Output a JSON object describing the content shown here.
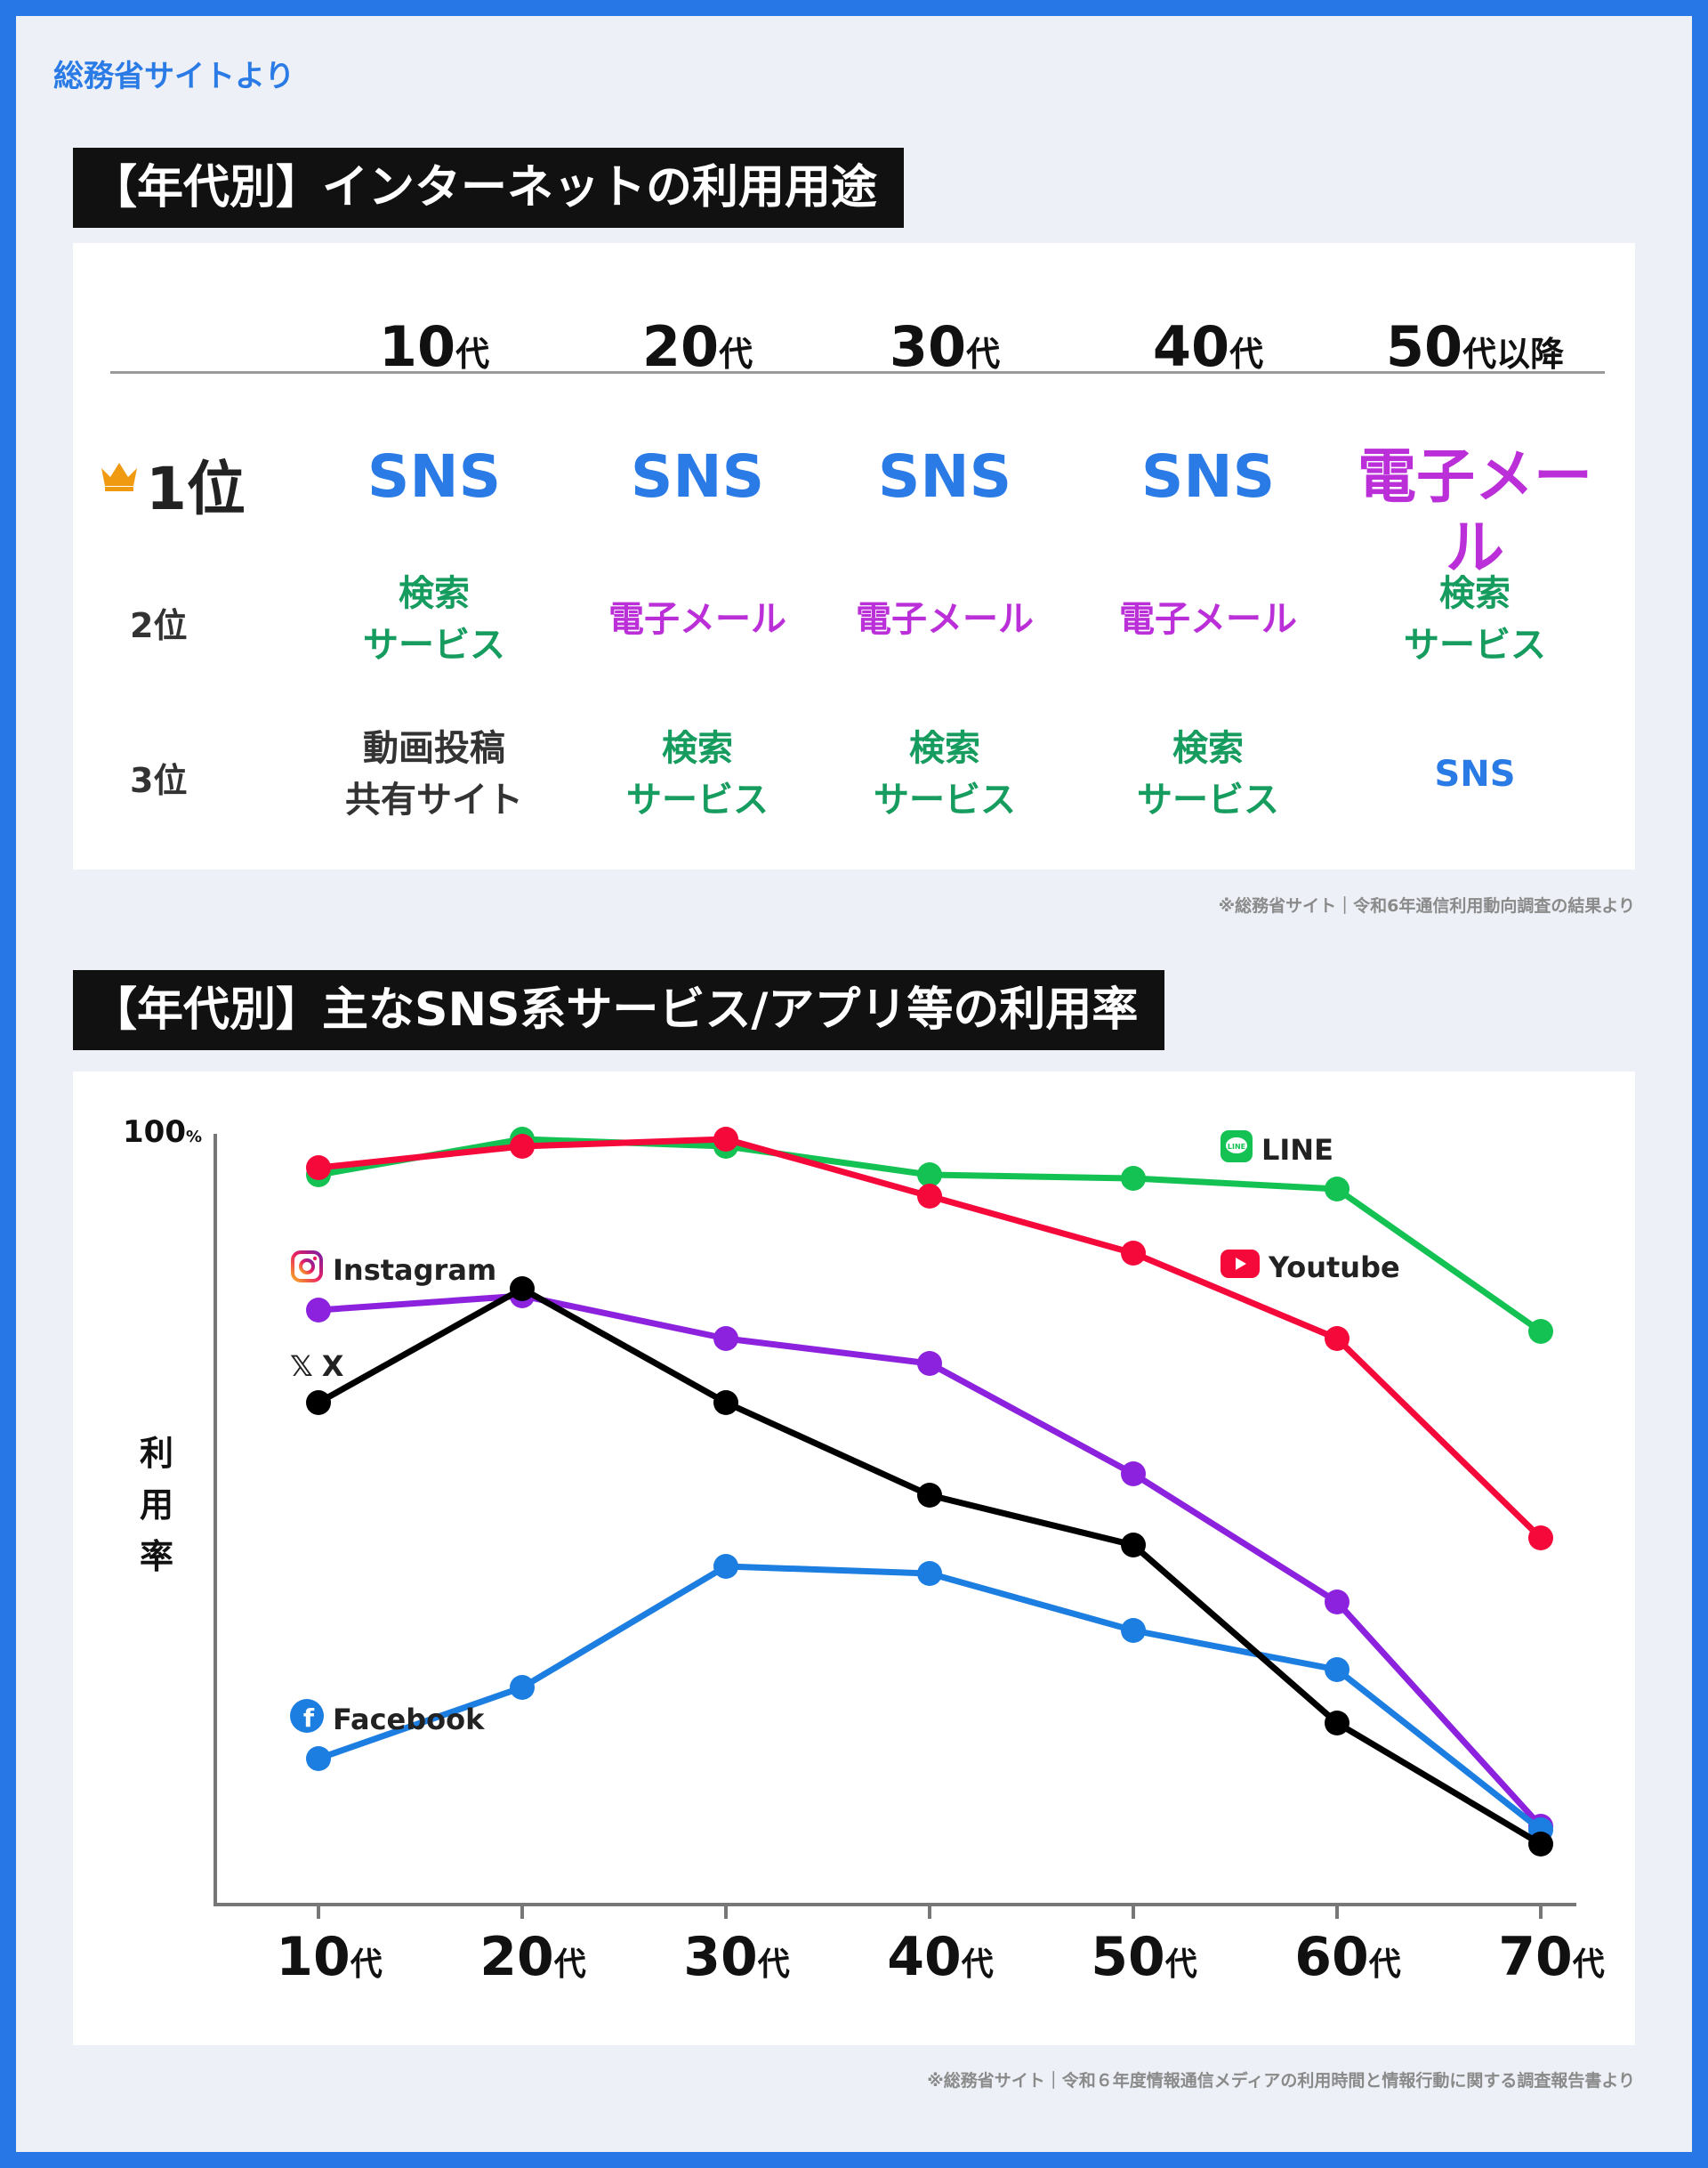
{
  "source_tag": "総務省サイトより",
  "section1": {
    "title": "【年代別】インターネットの利用用途",
    "columns": [
      {
        "num": "10",
        "unit": "代"
      },
      {
        "num": "20",
        "unit": "代"
      },
      {
        "num": "30",
        "unit": "代"
      },
      {
        "num": "40",
        "unit": "代"
      },
      {
        "num": "50",
        "unit": "代以降"
      }
    ],
    "ranks": [
      {
        "label": "1位",
        "cells": [
          {
            "text": "SNS",
            "kind": "sns"
          },
          {
            "text": "SNS",
            "kind": "sns"
          },
          {
            "text": "SNS",
            "kind": "sns"
          },
          {
            "text": "SNS",
            "kind": "sns"
          },
          {
            "text": "電子メール",
            "kind": "mail"
          }
        ]
      },
      {
        "label": "2位",
        "cells": [
          {
            "text": "検索\nサービス",
            "kind": "search"
          },
          {
            "text": "電子メール",
            "kind": "mail"
          },
          {
            "text": "電子メール",
            "kind": "mail"
          },
          {
            "text": "電子メール",
            "kind": "mail"
          },
          {
            "text": "検索\nサービス",
            "kind": "search"
          }
        ]
      },
      {
        "label": "3位",
        "cells": [
          {
            "text": "動画投稿\n共有サイト",
            "kind": "video"
          },
          {
            "text": "検索\nサービス",
            "kind": "search"
          },
          {
            "text": "検索\nサービス",
            "kind": "search"
          },
          {
            "text": "検索\nサービス",
            "kind": "search"
          },
          {
            "text": "SNS",
            "kind": "sns"
          }
        ]
      }
    ],
    "note": "※総務省サイト｜令和6年通信利用動向調査の結果より"
  },
  "section2": {
    "title": "【年代別】主なSNS系サービス/アプリ等の利用率",
    "note": "※総務省サイト｜令和６年度情報通信メディアの利用時間と情報行動に関する調査報告書より"
  },
  "colors": {
    "LINE": "#14c254",
    "Youtube": "#f5083a",
    "Instagram": "#8c22de",
    "X": "#000000",
    "Facebook": "#1c7ee0",
    "sns_text": "#2a7be6",
    "mail_text": "#bb2fd8",
    "search_text": "#169c5e"
  },
  "chart_data": {
    "type": "line",
    "categories": [
      "10代",
      "20代",
      "30代",
      "40代",
      "50代",
      "60代",
      "70代"
    ],
    "y_max_label": "100",
    "y_max_unit": "%",
    "ylabel": "利\n用\n率",
    "ylim": [
      0,
      100
    ],
    "grid": false,
    "series": [
      {
        "name": "LINE",
        "values": [
          95,
          100,
          99,
          95,
          94.5,
          93,
          73
        ]
      },
      {
        "name": "Youtube",
        "values": [
          96,
          99,
          100,
          92,
          84,
          72,
          44
        ]
      },
      {
        "name": "Instagram",
        "values": [
          76,
          78,
          72,
          68.5,
          53,
          35,
          3.5
        ]
      },
      {
        "name": "X",
        "values": [
          63,
          79,
          63,
          50,
          43,
          18,
          1
        ]
      },
      {
        "name": "Facebook",
        "values": [
          13,
          23,
          40,
          39,
          31,
          25.5,
          3
        ]
      }
    ]
  }
}
